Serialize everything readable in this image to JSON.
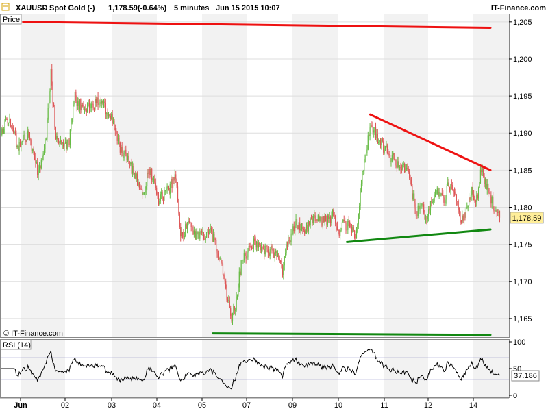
{
  "header": {
    "symbol": "XAUUSD",
    "name": "Spot Gold (-)",
    "price": "1,178.59",
    "change": "(-0.64%)",
    "interval": "5 minutes",
    "datetime": "Jun 15 2015 10:07",
    "brand": "IT-Finance.com"
  },
  "panels": {
    "price_label": "Price",
    "rsi_label": "RSI (14)",
    "watermark": "© IT-Finance.com"
  },
  "colors": {
    "up": "#66bb44",
    "down": "#dd5555",
    "resistance": "#ee1111",
    "support": "#118811",
    "rsi_line": "#000000",
    "rsi_band": "#333399",
    "shade": "#f2f2f2",
    "grid": "#dddddd",
    "last_price_bg": "#ffee99"
  },
  "chart_data": [
    {
      "type": "candlestick",
      "title": "XAUUSD - Spot Gold (-)",
      "ylabel": "Price",
      "ylim": [
        1162.5,
        1206
      ],
      "y_ticks": [
        1165,
        1170,
        1175,
        1180,
        1185,
        1190,
        1195,
        1200,
        1205
      ],
      "y_tick_labels": [
        "1,165",
        "1,170",
        "1,175",
        "1,180",
        "1,185",
        "1,190",
        "1,195",
        "1,200",
        "1,205"
      ],
      "x_tick_labels": [
        "Jun",
        "02",
        "03",
        "04",
        "05",
        "07",
        "09",
        "10",
        "11",
        "12",
        "14"
      ],
      "last_value": 1178.59,
      "last_value_label": "1,178.59",
      "series": [
        {
          "points": [
            [
              0,
              1190
            ],
            [
              2,
              1192
            ],
            [
              4,
              1188
            ],
            [
              6,
              1190
            ],
            [
              8,
              1185
            ],
            [
              9,
              1186
            ],
            [
              10,
              1190
            ],
            [
              11,
              1198
            ],
            [
              12,
              1190
            ],
            [
              14,
              1188
            ],
            [
              15,
              1189
            ],
            [
              16,
              1195
            ],
            [
              18,
              1193
            ],
            [
              20,
              1194
            ],
            [
              22,
              1194
            ],
            [
              24,
              1192
            ],
            [
              25,
              1190
            ],
            [
              26,
              1188
            ],
            [
              28,
              1186
            ],
            [
              30,
              1183
            ],
            [
              31,
              1182
            ],
            [
              32,
              1185
            ],
            [
              33,
              1184
            ],
            [
              34,
              1181
            ],
            [
              36,
              1182
            ],
            [
              38,
              1184
            ],
            [
              39,
              1176
            ],
            [
              40,
              1177
            ],
            [
              41,
              1178
            ],
            [
              42,
              1176
            ],
            [
              44,
              1176
            ],
            [
              45,
              1177
            ],
            [
              46,
              1176
            ],
            [
              47,
              1174
            ],
            [
              48,
              1172
            ],
            [
              49,
              1168
            ],
            [
              50,
              1165
            ],
            [
              51,
              1167
            ],
            [
              52,
              1172
            ],
            [
              54,
              1175
            ],
            [
              56,
              1175
            ],
            [
              58,
              1174
            ],
            [
              60,
              1174
            ],
            [
              61,
              1171
            ],
            [
              62,
              1175
            ],
            [
              63,
              1176
            ],
            [
              64,
              1178
            ],
            [
              66,
              1177
            ],
            [
              68,
              1179
            ],
            [
              70,
              1178
            ],
            [
              72,
              1179
            ],
            [
              73,
              1176
            ],
            [
              74,
              1178
            ],
            [
              76,
              1177
            ],
            [
              77,
              1176
            ],
            [
              78,
              1183
            ],
            [
              79,
              1187
            ],
            [
              80,
              1191
            ],
            [
              81,
              1190
            ],
            [
              82,
              1189
            ],
            [
              84,
              1187
            ],
            [
              86,
              1186
            ],
            [
              88,
              1185
            ],
            [
              89,
              1182
            ],
            [
              90,
              1179
            ],
            [
              91,
              1181
            ],
            [
              92,
              1178
            ],
            [
              93,
              1180
            ],
            [
              94,
              1182
            ],
            [
              96,
              1181
            ],
            [
              97,
              1183
            ],
            [
              98,
              1182
            ],
            [
              100,
              1178
            ],
            [
              101,
              1180
            ],
            [
              102,
              1182
            ],
            [
              103,
              1181
            ],
            [
              104,
              1185
            ],
            [
              105,
              1183
            ],
            [
              106,
              1181
            ],
            [
              107,
              1180
            ],
            [
              108,
              1178.59
            ]
          ]
        }
      ],
      "annotations": [
        {
          "name": "top-resistance-line",
          "color": "resistance",
          "from": [
            5,
            1205
          ],
          "to": [
            106,
            1204.2
          ]
        },
        {
          "name": "triangle-resistance-line",
          "color": "resistance",
          "from": [
            80,
            1192.5
          ],
          "to": [
            106,
            1185
          ]
        },
        {
          "name": "triangle-support-line",
          "color": "support",
          "from": [
            75,
            1175.3
          ],
          "to": [
            106,
            1177
          ]
        },
        {
          "name": "bottom-support-line",
          "color": "support",
          "from": [
            46,
            1163
          ],
          "to": [
            106,
            1162.8
          ]
        }
      ]
    },
    {
      "type": "line",
      "title": "RSI (14)",
      "ylim": [
        0,
        100
      ],
      "y_ticks": [
        0,
        50,
        100
      ],
      "y_tick_labels": [
        "0",
        "50",
        "100"
      ],
      "bands": [
        30,
        70
      ],
      "last_value": 37.186,
      "last_value_label": "37.186"
    }
  ]
}
